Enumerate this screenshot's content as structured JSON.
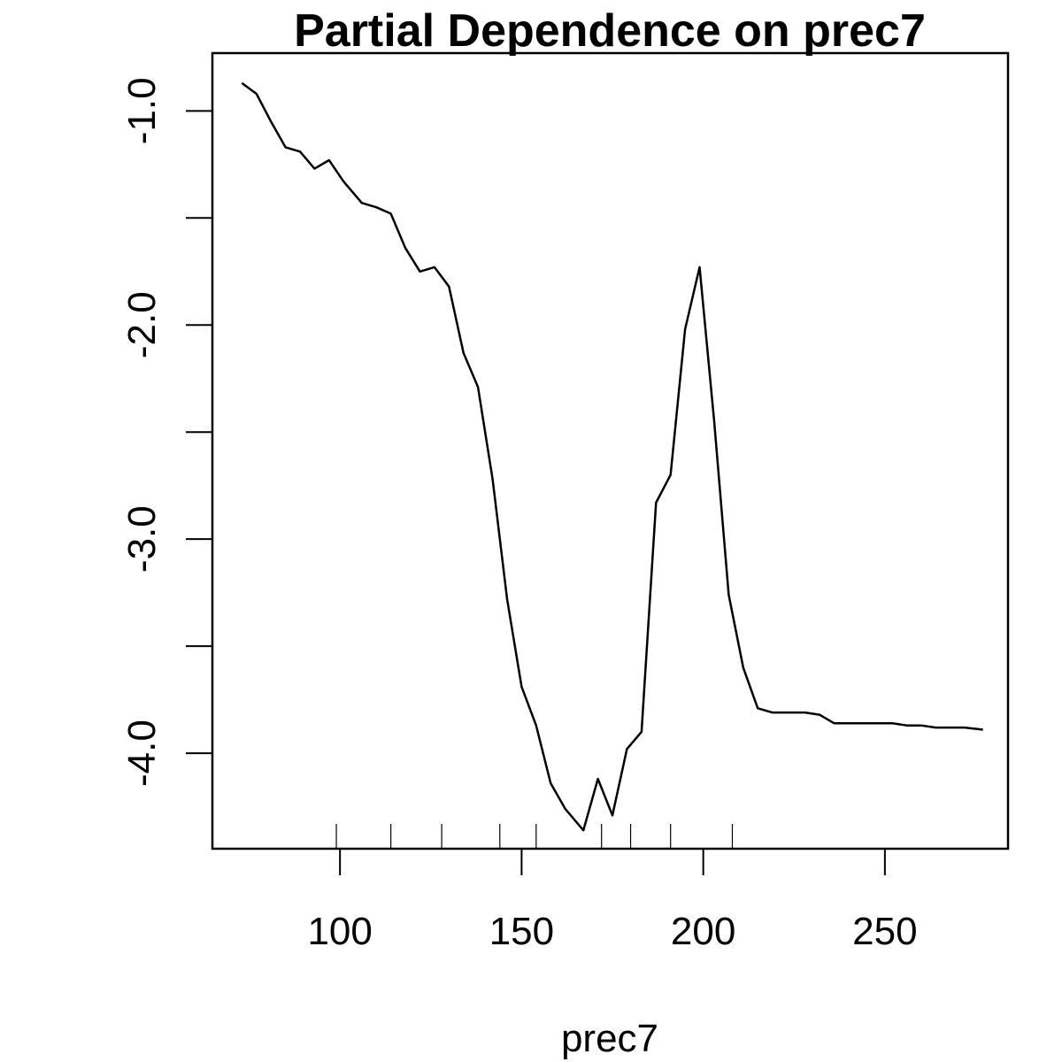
{
  "chart_data": {
    "type": "line",
    "title": "Partial Dependence on prec7",
    "xlabel": "prec7",
    "ylabel": "",
    "xlim": [
      64.88,
      283.89
    ],
    "ylim": [
      -4.446,
      -0.73
    ],
    "x_ticks": [
      100,
      150,
      200,
      250
    ],
    "x_tick_labels": [
      "100",
      "150",
      "200",
      "250"
    ],
    "y_ticks": [
      -1.0,
      -1.5,
      -2.0,
      -2.5,
      -3.0,
      -3.5,
      -4.0
    ],
    "y_tick_labels": [
      "-1.0",
      "",
      "-2.0",
      "",
      "-3.0",
      "",
      "-4.0"
    ],
    "grid": false,
    "series": [
      {
        "x": [
          73,
          77,
          81,
          85,
          89,
          93,
          97,
          101,
          106,
          110,
          114,
          118,
          122,
          126,
          130,
          134,
          138,
          142,
          146,
          150,
          154,
          158,
          162,
          167,
          171,
          175,
          179,
          183,
          187,
          191,
          195,
          199,
          203,
          207,
          211,
          215,
          219,
          224,
          228,
          232,
          236,
          240,
          244,
          248,
          252,
          256,
          260,
          264,
          268,
          272,
          277
        ],
        "y": [
          -0.87,
          -0.92,
          -1.05,
          -1.17,
          -1.19,
          -1.27,
          -1.23,
          -1.33,
          -1.43,
          -1.45,
          -1.48,
          -1.64,
          -1.75,
          -1.73,
          -1.82,
          -2.13,
          -2.29,
          -2.72,
          -3.28,
          -3.69,
          -3.87,
          -4.14,
          -4.26,
          -4.36,
          -4.12,
          -4.29,
          -3.98,
          -3.9,
          -2.83,
          -2.7,
          -2.02,
          -1.73,
          -2.45,
          -3.26,
          -3.6,
          -3.79,
          -3.81,
          -3.81,
          -3.81,
          -3.82,
          -3.86,
          -3.86,
          -3.86,
          -3.86,
          -3.86,
          -3.87,
          -3.87,
          -3.88,
          -3.88,
          -3.88,
          -3.89
        ]
      }
    ],
    "rug": [
      99,
      114,
      128,
      144,
      154,
      172,
      180,
      191,
      208
    ]
  }
}
